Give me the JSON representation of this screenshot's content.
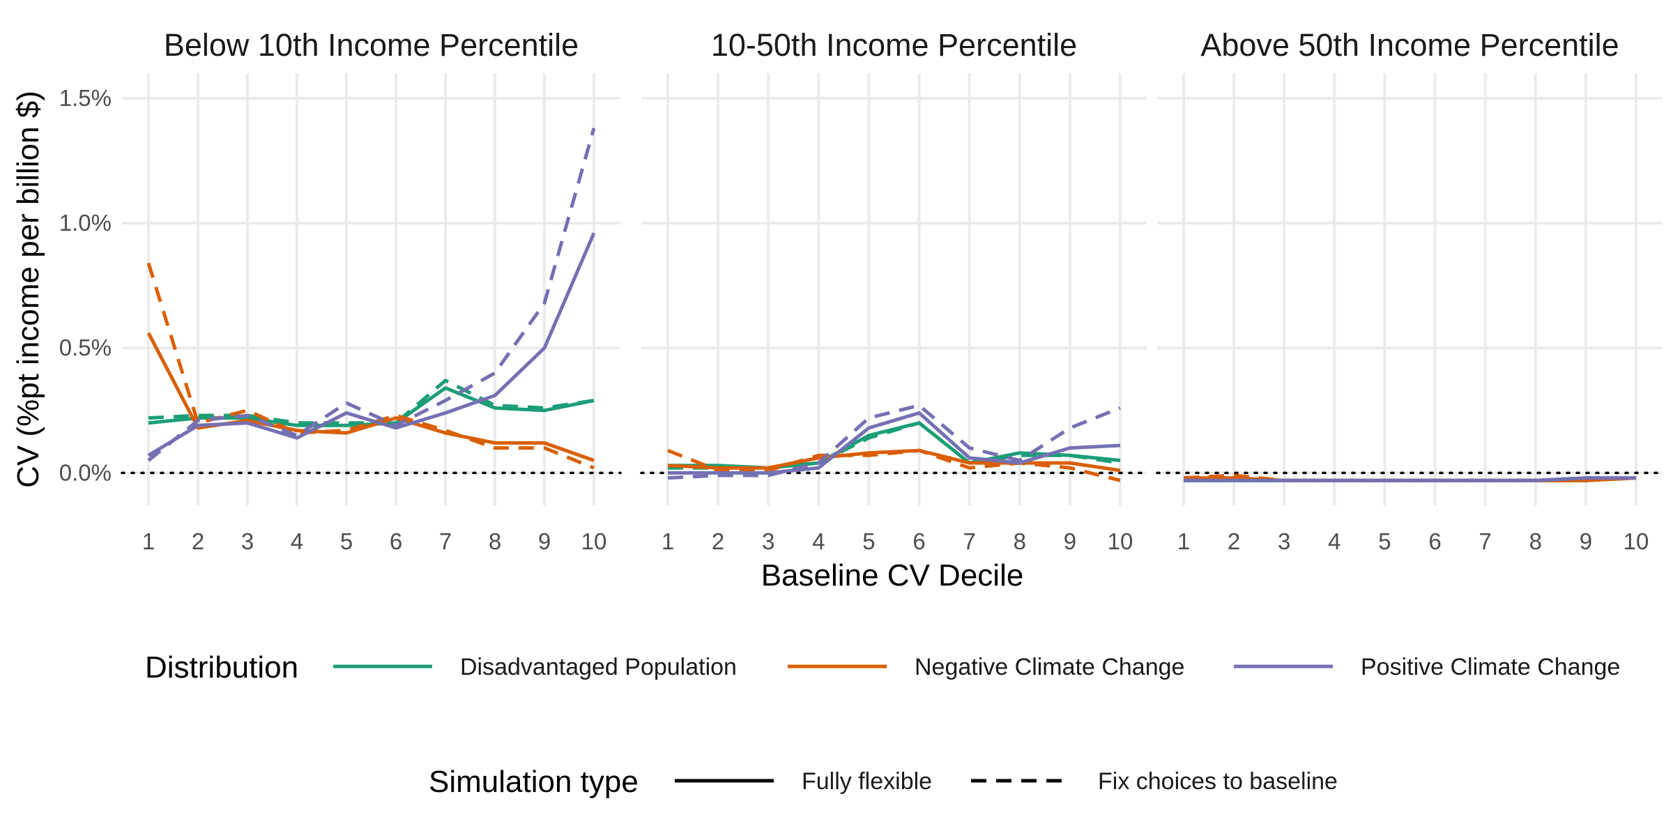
{
  "chart_data": {
    "type": "line",
    "xlabel": "Baseline CV Decile",
    "ylabel": "CV (%pt income per billion $)",
    "x": [
      1,
      2,
      3,
      4,
      5,
      6,
      7,
      8,
      9,
      10
    ],
    "ylim": [
      -0.13,
      1.6
    ],
    "yticks": [
      0.0,
      0.5,
      1.0,
      1.5
    ],
    "ytick_labels": [
      "0.0%",
      "0.5%",
      "1.0%",
      "1.5%"
    ],
    "reference_line": 0.0,
    "grid": true,
    "colors": {
      "Disadvantaged Population": "#1b9e77",
      "Negative Climate Change": "#d95f02",
      "Positive Climate Change": "#7570b3"
    },
    "legends": {
      "color": {
        "title": "Distribution",
        "entries": [
          "Disadvantaged Population",
          "Negative Climate Change",
          "Positive Climate Change"
        ]
      },
      "linetype": {
        "title": "Simulation type",
        "entries": [
          "Fully flexible",
          "Fix choices to baseline"
        ]
      }
    },
    "panels": [
      {
        "title": "Below 10th Income Percentile",
        "series": [
          {
            "distribution": "Disadvantaged Population",
            "simulation": "Fully flexible",
            "values": [
              0.2,
              0.22,
              0.22,
              0.19,
              0.19,
              0.2,
              0.34,
              0.26,
              0.25,
              0.29
            ]
          },
          {
            "distribution": "Disadvantaged Population",
            "simulation": "Fix choices to baseline",
            "values": [
              0.22,
              0.23,
              0.23,
              0.2,
              0.2,
              0.2,
              0.37,
              0.27,
              0.26,
              0.29
            ]
          },
          {
            "distribution": "Negative Climate Change",
            "simulation": "Fully flexible",
            "values": [
              0.56,
              0.18,
              0.21,
              0.17,
              0.16,
              0.22,
              0.16,
              0.12,
              0.12,
              0.05
            ]
          },
          {
            "distribution": "Negative Climate Change",
            "simulation": "Fix choices to baseline",
            "values": [
              0.84,
              0.2,
              0.25,
              0.16,
              0.17,
              0.23,
              0.17,
              0.1,
              0.1,
              0.02
            ]
          },
          {
            "distribution": "Positive Climate Change",
            "simulation": "Fully flexible",
            "values": [
              0.07,
              0.19,
              0.2,
              0.14,
              0.24,
              0.18,
              0.24,
              0.31,
              0.5,
              0.96
            ]
          },
          {
            "distribution": "Positive Climate Change",
            "simulation": "Fix choices to baseline",
            "values": [
              0.05,
              0.21,
              0.23,
              0.15,
              0.28,
              0.19,
              0.29,
              0.4,
              0.68,
              1.38
            ]
          }
        ]
      },
      {
        "title": "10-50th Income Percentile",
        "series": [
          {
            "distribution": "Disadvantaged Population",
            "simulation": "Fully flexible",
            "values": [
              0.03,
              0.03,
              0.02,
              0.04,
              0.15,
              0.2,
              0.04,
              0.08,
              0.07,
              0.05
            ]
          },
          {
            "distribution": "Disadvantaged Population",
            "simulation": "Fix choices to baseline",
            "values": [
              0.02,
              0.02,
              0.02,
              0.04,
              0.14,
              0.2,
              0.04,
              0.07,
              0.07,
              0.04
            ]
          },
          {
            "distribution": "Negative Climate Change",
            "simulation": "Fully flexible",
            "values": [
              0.03,
              0.02,
              0.02,
              0.06,
              0.08,
              0.09,
              0.04,
              0.04,
              0.04,
              0.01
            ]
          },
          {
            "distribution": "Negative Climate Change",
            "simulation": "Fix choices to baseline",
            "values": [
              0.09,
              0.01,
              0.01,
              0.07,
              0.07,
              0.09,
              0.02,
              0.04,
              0.02,
              -0.03
            ]
          },
          {
            "distribution": "Positive Climate Change",
            "simulation": "Fully flexible",
            "values": [
              0.0,
              0.0,
              0.0,
              0.02,
              0.18,
              0.24,
              0.06,
              0.04,
              0.1,
              0.11
            ]
          },
          {
            "distribution": "Positive Climate Change",
            "simulation": "Fix choices to baseline",
            "values": [
              -0.02,
              -0.01,
              -0.01,
              0.04,
              0.22,
              0.27,
              0.1,
              0.05,
              0.18,
              0.26
            ]
          }
        ]
      },
      {
        "title": "Above 50th Income Percentile",
        "series": [
          {
            "distribution": "Disadvantaged Population",
            "simulation": "Fully flexible",
            "values": [
              -0.03,
              -0.03,
              -0.03,
              -0.03,
              -0.03,
              -0.03,
              -0.03,
              -0.03,
              -0.03,
              -0.02
            ]
          },
          {
            "distribution": "Disadvantaged Population",
            "simulation": "Fix choices to baseline",
            "values": [
              -0.03,
              -0.03,
              -0.03,
              -0.03,
              -0.03,
              -0.03,
              -0.03,
              -0.03,
              -0.03,
              -0.02
            ]
          },
          {
            "distribution": "Negative Climate Change",
            "simulation": "Fully flexible",
            "values": [
              -0.02,
              -0.02,
              -0.03,
              -0.03,
              -0.03,
              -0.03,
              -0.03,
              -0.03,
              -0.03,
              -0.02
            ]
          },
          {
            "distribution": "Negative Climate Change",
            "simulation": "Fix choices to baseline",
            "values": [
              -0.02,
              -0.01,
              -0.03,
              -0.03,
              -0.03,
              -0.03,
              -0.03,
              -0.03,
              -0.03,
              -0.02
            ]
          },
          {
            "distribution": "Positive Climate Change",
            "simulation": "Fully flexible",
            "values": [
              -0.03,
              -0.03,
              -0.03,
              -0.03,
              -0.03,
              -0.03,
              -0.03,
              -0.03,
              -0.02,
              -0.02
            ]
          },
          {
            "distribution": "Positive Climate Change",
            "simulation": "Fix choices to baseline",
            "values": [
              -0.03,
              -0.03,
              -0.03,
              -0.03,
              -0.03,
              -0.03,
              -0.03,
              -0.03,
              -0.02,
              -0.02
            ]
          }
        ]
      }
    ]
  }
}
